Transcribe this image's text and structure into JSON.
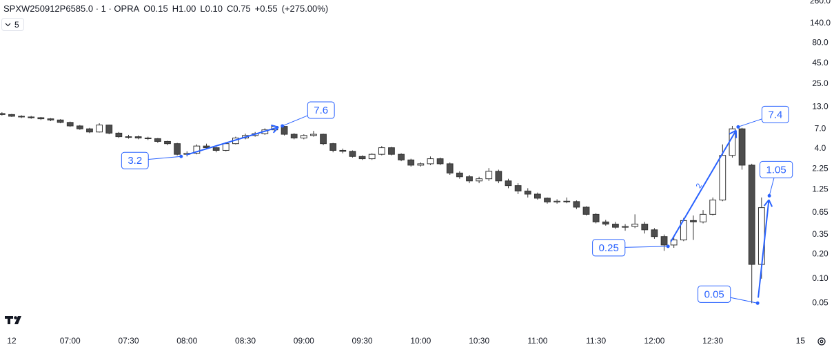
{
  "chart_data": {
    "type": "candlestick",
    "title": "SPXW250912P6585.0 · 1 · OPRA",
    "ohlc": [
      {
        "name": "O",
        "value": 0.15
      },
      {
        "name": "H",
        "value": {
          "value": 1,
          "label": "1.00"
        }
      },
      {
        "name": "L",
        "value": {
          "value": 0.1,
          "label": "0.10"
        }
      },
      {
        "name": "C",
        "value": 0.75
      }
    ],
    "change": {
      "value": 0.55,
      "label": "+0.55"
    },
    "change_percent": {
      "value": 275,
      "label": "(+275.00%)"
    },
    "indicator_count": 5,
    "log_scale": true,
    "grid": false,
    "up_color": "#ffffff",
    "down_color": "#4d4d4d",
    "wick_color": "#333333",
    "annotation_color": "#2962ff",
    "xlim": [
      "06:24",
      "13:17"
    ],
    "xticks": [
      {
        "value": "06:30",
        "label": "12"
      },
      "07:00",
      "07:30",
      "08:00",
      "08:30",
      "09:00",
      "09:30",
      "10:00",
      "10:30",
      "11:00",
      "11:30",
      "12:00",
      "12:30",
      {
        "value": "13:15",
        "label": "15"
      }
    ],
    "ylim": [
      0.024,
      270
    ],
    "yticks": [
      {
        "value": 260,
        "label": "260.0"
      },
      {
        "value": 140,
        "label": "140.0"
      },
      {
        "value": 80,
        "label": "80.0"
      },
      {
        "value": 45,
        "label": "45.0"
      },
      {
        "value": 25,
        "label": "25.0"
      },
      {
        "value": 13,
        "label": "13.0"
      },
      {
        "value": 7,
        "label": "7.0"
      },
      {
        "value": 4,
        "label": "4.0"
      },
      2.25,
      1.25,
      0.65,
      0.35,
      {
        "value": 0.2,
        "label": "0.20"
      },
      {
        "value": 0.1,
        "label": "0.10"
      },
      0.05
    ],
    "x": [
      "06:25",
      "06:30",
      "06:35",
      "06:40",
      "06:45",
      "06:50",
      "06:55",
      "07:00",
      "07:05",
      "07:10",
      "07:15",
      "07:20",
      "07:25",
      "07:30",
      "07:35",
      "07:40",
      "07:45",
      "07:50",
      "07:55",
      "08:00",
      "08:05",
      "08:10",
      "08:15",
      "08:20",
      "08:25",
      "08:30",
      "08:35",
      "08:40",
      "08:45",
      "08:50",
      "08:55",
      "09:00",
      "09:05",
      "09:10",
      "09:15",
      "09:20",
      "09:25",
      "09:30",
      "09:35",
      "09:40",
      "09:45",
      "09:50",
      "09:55",
      "10:00",
      "10:05",
      "10:10",
      "10:15",
      "10:20",
      "10:25",
      "10:30",
      "10:35",
      "10:40",
      "10:45",
      "10:50",
      "10:55",
      "11:00",
      "11:05",
      "11:10",
      "11:15",
      "11:20",
      "11:25",
      "11:30",
      "11:35",
      "11:40",
      "11:45",
      "11:50",
      "11:55",
      "12:00",
      "12:05",
      "12:10",
      "12:15",
      "12:20",
      "12:25",
      "12:30",
      "12:35",
      "12:40",
      "12:45",
      "12:50",
      "12:55"
    ],
    "open": [
      10.8,
      10.5,
      10.0,
      9.8,
      9.6,
      9.3,
      9.0,
      8.4,
      7.6,
      7.0,
      6.4,
      7.8,
      6.2,
      5.6,
      5.6,
      5.4,
      5.3,
      4.9,
      4.6,
      3.4,
      3.5,
      4.3,
      4.1,
      3.8,
      4.6,
      5.4,
      5.8,
      6.1,
      6.8,
      7.5,
      6.0,
      5.4,
      5.8,
      6.0,
      4.6,
      3.8,
      3.7,
      3.2,
      3.0,
      3.4,
      4.1,
      3.4,
      2.9,
      2.5,
      2.6,
      3.0,
      2.6,
      2.0,
      1.8,
      1.6,
      1.7,
      2.1,
      1.6,
      1.4,
      1.2,
      1.1,
      0.98,
      0.88,
      0.9,
      0.89,
      0.76,
      0.62,
      0.5,
      0.47,
      0.43,
      0.44,
      0.47,
      0.4,
      0.33,
      0.26,
      0.3,
      0.52,
      0.5,
      0.62,
      0.93,
      3.3,
      7.0,
      2.5,
      0.15
    ],
    "high": [
      11.2,
      10.7,
      10.3,
      10.1,
      9.8,
      9.5,
      9.2,
      8.6,
      7.8,
      7.2,
      8.2,
      7.9,
      6.4,
      5.9,
      5.8,
      5.6,
      5.4,
      5.0,
      4.7,
      3.7,
      4.5,
      4.6,
      4.2,
      4.8,
      5.6,
      6.1,
      6.4,
      7.1,
      7.7,
      7.6,
      6.2,
      6.0,
      6.6,
      6.1,
      4.7,
      4.0,
      3.8,
      3.3,
      3.5,
      4.3,
      4.2,
      3.5,
      3.0,
      2.7,
      3.2,
      3.1,
      2.7,
      2.1,
      1.9,
      1.8,
      2.3,
      2.2,
      1.7,
      1.5,
      1.3,
      1.15,
      1.0,
      0.95,
      1.0,
      0.92,
      0.78,
      0.64,
      0.53,
      0.5,
      0.47,
      0.62,
      0.5,
      0.42,
      0.35,
      0.32,
      0.56,
      0.6,
      0.7,
      1.0,
      4.5,
      7.6,
      7.2,
      2.6,
      1.0
    ],
    "low": [
      10.2,
      9.8,
      9.5,
      9.3,
      9.0,
      8.7,
      8.2,
      7.4,
      6.8,
      6.2,
      6.3,
      6.0,
      5.4,
      5.3,
      5.2,
      5.1,
      4.7,
      4.4,
      3.3,
      3.2,
      3.4,
      4.0,
      3.6,
      3.7,
      4.5,
      5.2,
      5.6,
      5.9,
      6.6,
      5.8,
      5.2,
      5.2,
      5.6,
      4.4,
      3.6,
      3.5,
      3.1,
      2.9,
      2.9,
      3.3,
      3.3,
      2.8,
      2.4,
      2.4,
      2.5,
      2.5,
      1.9,
      1.7,
      1.5,
      1.5,
      1.6,
      1.5,
      1.3,
      1.1,
      1.0,
      0.94,
      0.84,
      0.84,
      0.85,
      0.72,
      0.6,
      0.48,
      0.45,
      0.41,
      0.39,
      0.42,
      0.36,
      0.31,
      0.22,
      0.24,
      0.29,
      0.3,
      0.48,
      0.6,
      0.9,
      3.1,
      2.2,
      0.05,
      0.1
    ],
    "close": [
      10.5,
      10.0,
      9.8,
      9.6,
      9.3,
      9.0,
      8.4,
      7.6,
      7.0,
      6.4,
      7.8,
      6.2,
      5.6,
      5.6,
      5.4,
      5.3,
      4.9,
      4.6,
      3.4,
      3.5,
      4.3,
      4.1,
      3.8,
      4.6,
      5.4,
      5.8,
      6.1,
      6.8,
      7.5,
      6.0,
      5.4,
      5.8,
      6.0,
      4.6,
      3.8,
      3.7,
      3.2,
      3.0,
      3.4,
      4.1,
      3.4,
      2.9,
      2.5,
      2.6,
      3.0,
      2.6,
      2.0,
      1.8,
      1.6,
      1.7,
      2.1,
      1.6,
      1.4,
      1.2,
      1.1,
      0.98,
      0.88,
      0.9,
      0.89,
      0.76,
      0.62,
      0.5,
      0.47,
      0.43,
      0.44,
      0.47,
      0.4,
      0.33,
      0.26,
      0.3,
      0.52,
      0.5,
      0.62,
      0.93,
      3.3,
      7.0,
      2.5,
      0.15,
      0.75
    ],
    "annotations": [
      {
        "x": "07:57",
        "value": 3.2
      },
      {
        "x": "08:49",
        "value": 7.6
      },
      {
        "x": "12:07",
        "value": 0.25
      },
      {
        "x": "12:43",
        "value": 7.4
      },
      {
        "x": "12:53",
        "value": 0.05
      },
      {
        "x": "12:59",
        "value": 1.05
      }
    ],
    "arrow_label": "2"
  }
}
